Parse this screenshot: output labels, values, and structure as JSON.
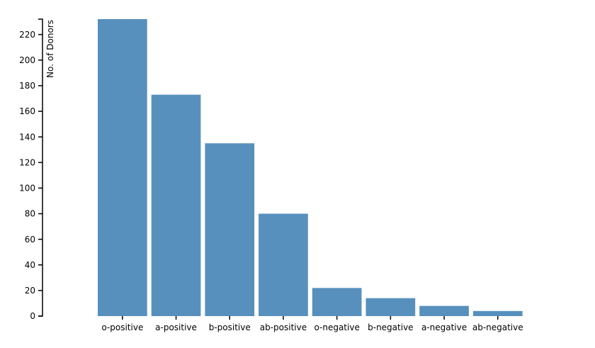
{
  "chart_data": {
    "type": "bar",
    "title": "",
    "xlabel": "",
    "ylabel": "No. of Donors",
    "categories": [
      "o-positive",
      "a-positive",
      "b-positive",
      "ab-positive",
      "o-negative",
      "b-negative",
      "a-negative",
      "ab-negative"
    ],
    "values": [
      232,
      173,
      135,
      80,
      22,
      14,
      8,
      4
    ],
    "ylim": [
      0,
      232
    ],
    "yticks": [
      0,
      20,
      40,
      60,
      80,
      100,
      120,
      140,
      160,
      180,
      200,
      220
    ],
    "grid": false,
    "legend": "none",
    "bar_color": "#5790bd"
  }
}
